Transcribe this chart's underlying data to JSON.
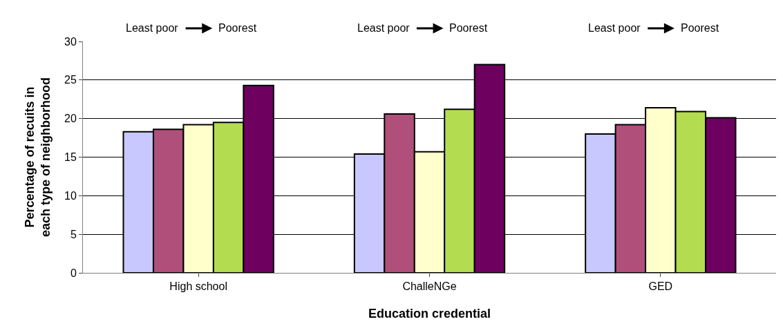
{
  "chart_data": {
    "type": "bar",
    "xlabel": "Education credential",
    "ylabel": "Percentage of recuits in each type of neighborhood",
    "categories": [
      "High school",
      "ChalleNGe",
      "GED"
    ],
    "series": [
      {
        "color": "#c8c8ff",
        "values": [
          18.3,
          15.4,
          18.0
        ]
      },
      {
        "color": "#b0507a",
        "values": [
          18.6,
          20.6,
          19.2
        ]
      },
      {
        "color": "#ffffcc",
        "values": [
          19.2,
          15.7,
          21.4
        ]
      },
      {
        "color": "#b4dc50",
        "values": [
          19.5,
          21.2,
          20.9
        ]
      },
      {
        "color": "#6e0060",
        "values": [
          24.3,
          27.0,
          20.1
        ]
      }
    ],
    "ylim": [
      0,
      30
    ],
    "yticks": [
      0,
      5,
      10,
      15,
      20,
      25,
      30
    ],
    "grid": "y",
    "annotations": [
      "Least poor",
      "Poorest",
      "Least poor",
      "Poorest",
      "Least poor",
      "Poorest"
    ]
  }
}
